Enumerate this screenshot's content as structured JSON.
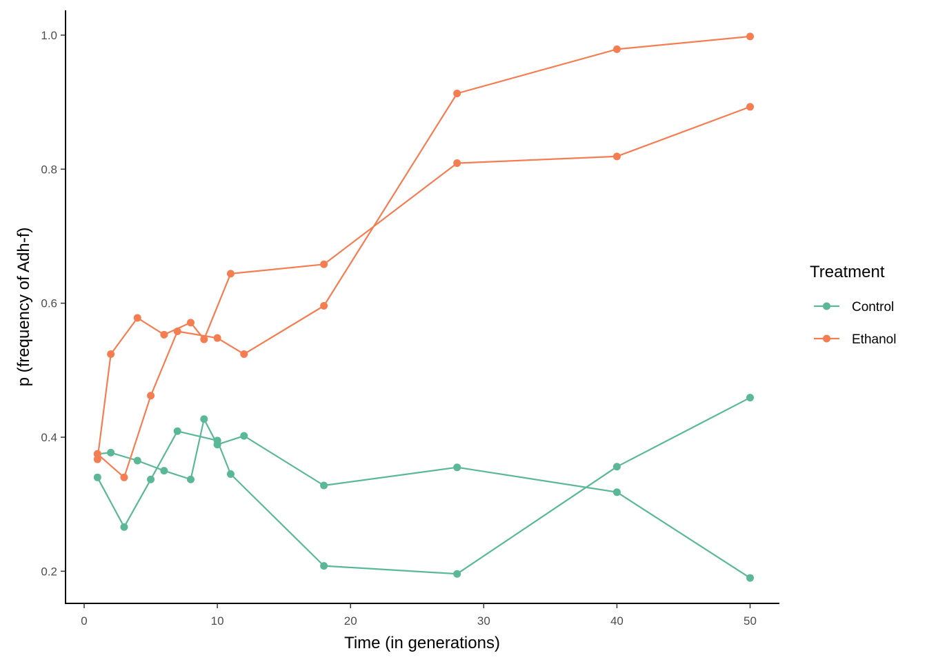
{
  "chart_data": {
    "type": "line",
    "title": "",
    "xlabel": "Time (in generations)",
    "ylabel": "p (frequency of Adh-f)",
    "xlim": [
      -1.4,
      52.2
    ],
    "ylim": [
      0.152,
      1.037
    ],
    "x_ticks": [
      0,
      10,
      20,
      30,
      40,
      50
    ],
    "x_tick_labels": [
      "0",
      "10",
      "20",
      "30",
      "40",
      "50"
    ],
    "y_ticks": [
      0.2,
      0.4,
      0.6,
      0.8,
      1.0
    ],
    "y_tick_labels": [
      "0.2",
      "0.4",
      "0.6",
      "0.8",
      "1.0"
    ],
    "grid": false,
    "legend": {
      "title": "Treatment",
      "placement": "right",
      "entries": [
        {
          "label": "Control",
          "color": "#5ab897"
        },
        {
          "label": "Ethanol",
          "color": "#f47d52"
        }
      ]
    },
    "series": [
      {
        "treatment": "Control",
        "color": "#5ab897",
        "x": [
          1,
          2,
          4,
          6,
          8,
          9,
          10,
          12,
          18,
          28,
          40,
          50
        ],
        "y": [
          0.375,
          0.377,
          0.365,
          0.35,
          0.337,
          0.427,
          0.389,
          0.402,
          0.328,
          0.355,
          0.318,
          0.19
        ]
      },
      {
        "treatment": "Control",
        "color": "#5ab897",
        "x": [
          1,
          3,
          5,
          7,
          10,
          11,
          18,
          28,
          40,
          50
        ],
        "y": [
          0.34,
          0.266,
          0.337,
          0.409,
          0.395,
          0.345,
          0.208,
          0.196,
          0.356,
          0.459
        ]
      },
      {
        "treatment": "Ethanol",
        "color": "#f47d52",
        "x": [
          1,
          2,
          4,
          6,
          8,
          9,
          11,
          18,
          28,
          40,
          50
        ],
        "y": [
          0.367,
          0.524,
          0.578,
          0.553,
          0.571,
          0.546,
          0.644,
          0.658,
          0.809,
          0.819,
          0.893
        ]
      },
      {
        "treatment": "Ethanol",
        "color": "#f47d52",
        "x": [
          1,
          3,
          5,
          7,
          10,
          12,
          18,
          28,
          40,
          50
        ],
        "y": [
          0.375,
          0.34,
          0.462,
          0.558,
          0.548,
          0.524,
          0.596,
          0.913,
          0.979,
          0.998
        ]
      }
    ]
  }
}
